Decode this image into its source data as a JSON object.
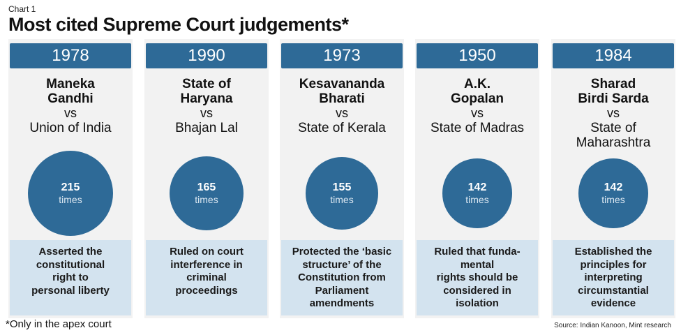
{
  "kicker": "Chart 1",
  "title": "Most cited Supreme Court judgements*",
  "footnote": "*Only in the apex court",
  "source": "Source: Indian Kanoon, Mint research",
  "colors": {
    "accent": "#2e6a97",
    "card_bg": "#f2f2f2",
    "desc_bg": "#d3e3ef"
  },
  "chart_data": {
    "type": "bubble",
    "title": "Most cited Supreme Court judgements*",
    "value_unit": "times",
    "cases": [
      {
        "year": "1978",
        "name": "Maneka\nGandhi",
        "vs": "vs",
        "opponent": "Union of India",
        "citations": 215,
        "description": "Asserted the\nconstitutional\nright to\npersonal liberty"
      },
      {
        "year": "1990",
        "name": "State of\nHaryana",
        "vs": "vs",
        "opponent": "Bhajan Lal",
        "citations": 165,
        "description": "Ruled on court\ninterference in\ncriminal\nproceedings"
      },
      {
        "year": "1973",
        "name": "Kesavananda\nBharati",
        "vs": "vs",
        "opponent": "State of Kerala",
        "citations": 155,
        "description": "Protected the ‘basic\nstructure’ of the\nConstitution from\nParliament\namendments"
      },
      {
        "year": "1950",
        "name": "A.K.\nGopalan",
        "vs": "vs",
        "opponent": "State of Madras",
        "citations": 142,
        "description": "Ruled that funda-\nmental\nrights should be\nconsidered in\nisolation"
      },
      {
        "year": "1984",
        "name": "Sharad\nBirdi Sarda",
        "vs": "vs",
        "opponent": "State of\nMaharashtra",
        "citations": 142,
        "description": "Established the\nprinciples for\ninterpreting\ncircumstantial\nevidence"
      }
    ]
  }
}
